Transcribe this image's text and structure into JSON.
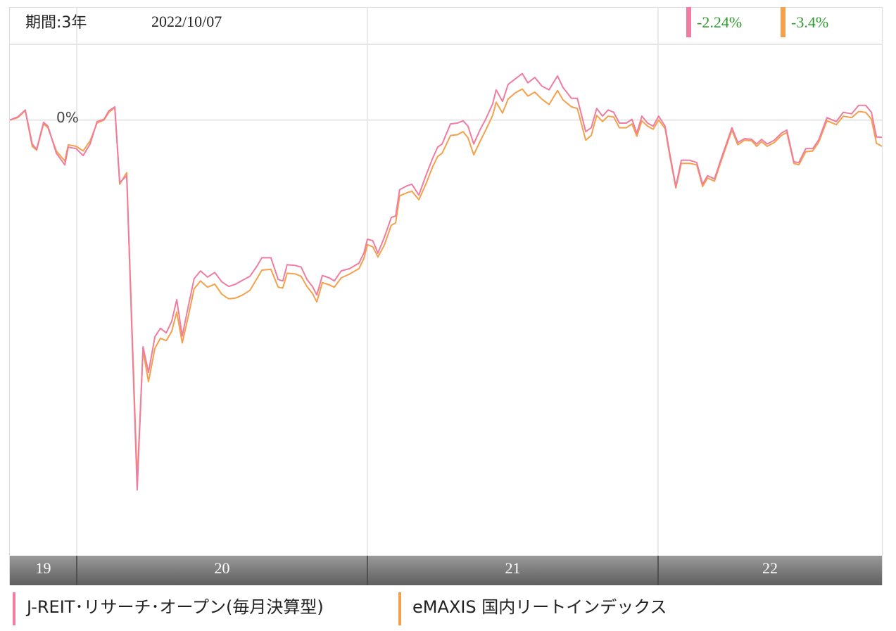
{
  "chart_data": {
    "type": "line",
    "period": "期間:3年",
    "date": "2022/10/07",
    "xlim": [
      2019.77,
      2022.77
    ],
    "xticks": [
      2020,
      2021,
      2022
    ],
    "years": [
      "19",
      "20",
      "21",
      "22"
    ],
    "ylim": [
      -56.3,
      14.6
    ],
    "yticks": [
      {
        "value": 0,
        "label": "0%"
      }
    ],
    "x": [
      2019.77,
      2019.797,
      2019.823,
      2019.847,
      2019.862,
      2019.886,
      2019.901,
      2019.93,
      2019.959,
      2019.971,
      2019.998,
      2020.022,
      2020.046,
      2020.07,
      2020.094,
      2020.111,
      2020.131,
      2020.148,
      2020.172,
      2020.208,
      2020.228,
      2020.247,
      2020.269,
      2020.288,
      2020.308,
      2020.327,
      2020.344,
      2020.363,
      2020.383,
      2020.404,
      2020.426,
      2020.45,
      2020.475,
      2020.499,
      2020.523,
      2020.547,
      2020.571,
      2020.596,
      2020.62,
      2020.637,
      2020.668,
      2020.693,
      2020.709,
      2020.724,
      2020.753,
      2020.772,
      2020.792,
      2020.811,
      2020.826,
      2020.845,
      2020.869,
      2020.886,
      2020.91,
      2020.939,
      2020.971,
      2020.988,
      2021.0,
      2021.019,
      2021.036,
      2021.058,
      2021.082,
      2021.097,
      2021.111,
      2021.136,
      2021.153,
      2021.177,
      2021.201,
      2021.225,
      2021.242,
      2021.257,
      2021.286,
      2021.31,
      2021.329,
      2021.346,
      2021.366,
      2021.387,
      2021.407,
      2021.431,
      2021.443,
      2021.465,
      2021.484,
      2021.508,
      2021.533,
      2021.552,
      2021.576,
      2021.6,
      2021.625,
      2021.654,
      2021.673,
      2021.702,
      2021.722,
      2021.751,
      2021.77,
      2021.789,
      2021.809,
      2021.828,
      2021.847,
      2021.867,
      2021.891,
      2021.91,
      2021.927,
      2021.944,
      2021.964,
      2021.983,
      2022.002,
      2022.024,
      2022.041,
      2022.061,
      2022.08,
      2022.109,
      2022.133,
      2022.153,
      2022.17,
      2022.194,
      2022.218,
      2022.254,
      2022.274,
      2022.298,
      2022.322,
      2022.339,
      2022.356,
      2022.375,
      2022.4,
      2022.424,
      2022.443,
      2022.467,
      2022.484,
      2022.508,
      2022.532,
      2022.552,
      2022.581,
      2022.613,
      2022.637,
      2022.666,
      2022.69,
      2022.714,
      2022.734,
      2022.751,
      2022.77
    ],
    "series": [
      {
        "name": "J-REIT･リサーチ･オープン(毎月決算型)",
        "color": "#f07ca0",
        "end_label": "-2.24%",
        "values": [
          0,
          0.4,
          1.3,
          -3.1,
          -3.8,
          -0.3,
          -0.8,
          -4.3,
          -5.8,
          -3.5,
          -3.7,
          -4.6,
          -3.1,
          -0.2,
          0.1,
          1.2,
          1.7,
          -8.1,
          -7.2,
          -47.8,
          -29.3,
          -32.6,
          -28.0,
          -26.9,
          -27.5,
          -26.0,
          -23.2,
          -27.9,
          -24.2,
          -20.5,
          -19.5,
          -20.3,
          -19.7,
          -20.9,
          -21.5,
          -21.2,
          -20.7,
          -20.2,
          -18.9,
          -17.8,
          -17.8,
          -20.6,
          -20.8,
          -18.7,
          -18.8,
          -19.0,
          -20.6,
          -21.5,
          -22.6,
          -20.1,
          -20.4,
          -20.8,
          -19.5,
          -19.2,
          -18.5,
          -17.2,
          -15.4,
          -15.6,
          -17.2,
          -15.2,
          -12.6,
          -12.4,
          -9.0,
          -8.5,
          -8.3,
          -9.7,
          -7.2,
          -4.9,
          -3.5,
          -3.1,
          -0.5,
          -0.4,
          -0.1,
          -0.8,
          -3.1,
          -1.3,
          0.1,
          2.1,
          3.9,
          2.4,
          4.6,
          5.3,
          6.0,
          4.8,
          5.5,
          4.4,
          3.9,
          5.7,
          4.2,
          2.8,
          2.8,
          -1.5,
          -1.0,
          1.5,
          0.5,
          1.3,
          1.0,
          -0.4,
          -0.4,
          0.1,
          -1.7,
          0.5,
          -0.4,
          -0.8,
          0.5,
          -0.8,
          -4.5,
          -8.6,
          -5.2,
          -5.2,
          -5.5,
          -8.3,
          -7.2,
          -7.6,
          -4.9,
          -1.0,
          -2.9,
          -2.4,
          -2.5,
          -3.1,
          -2.5,
          -3.1,
          -2.6,
          -1.7,
          -1.3,
          -5.4,
          -5.5,
          -3.7,
          -3.7,
          -2.6,
          0.3,
          -0.2,
          1.0,
          0.8,
          1.9,
          1.9,
          1.0,
          -2.2,
          -2.24
        ]
      },
      {
        "name": "eMAXIS 国内リートインデックス",
        "color": "#f5a04a",
        "end_label": "-3.4%",
        "values": [
          0,
          0.3,
          1.2,
          -3.4,
          -3.9,
          -0.5,
          -1.0,
          -4.0,
          -5.3,
          -3.2,
          -3.4,
          -4.0,
          -2.7,
          -0.4,
          0.0,
          1.0,
          1.6,
          -8.3,
          -6.8,
          -46.5,
          -29.8,
          -33.8,
          -29.5,
          -28.2,
          -28.5,
          -27.3,
          -24.8,
          -28.8,
          -25.5,
          -21.8,
          -20.8,
          -21.6,
          -21.2,
          -22.5,
          -23.1,
          -23.0,
          -22.6,
          -22.0,
          -20.5,
          -19.4,
          -19.3,
          -21.6,
          -21.7,
          -19.8,
          -19.9,
          -20.2,
          -21.5,
          -22.4,
          -23.5,
          -21.0,
          -21.3,
          -21.6,
          -20.4,
          -19.9,
          -19.2,
          -17.9,
          -16.1,
          -16.4,
          -17.7,
          -16.2,
          -13.6,
          -13.3,
          -9.8,
          -9.4,
          -9.2,
          -10.3,
          -8.3,
          -6.0,
          -4.7,
          -4.3,
          -2.0,
          -1.9,
          -1.5,
          -2.3,
          -4.5,
          -2.8,
          -1.3,
          0.6,
          2.3,
          0.9,
          2.7,
          3.5,
          4.0,
          3.1,
          3.6,
          2.7,
          2.0,
          3.8,
          2.6,
          1.7,
          1.5,
          -2.6,
          -2.0,
          0.6,
          -0.2,
          0.5,
          0.4,
          -1.0,
          -1.0,
          -0.5,
          -2.1,
          -0.1,
          -0.8,
          -1.2,
          0.0,
          -1.1,
          -4.8,
          -8.8,
          -5.6,
          -5.6,
          -5.8,
          -8.6,
          -7.5,
          -7.9,
          -5.2,
          -1.3,
          -3.2,
          -2.6,
          -2.7,
          -3.4,
          -2.8,
          -3.4,
          -2.9,
          -2.0,
          -1.6,
          -5.6,
          -5.8,
          -4.1,
          -4.0,
          -2.9,
          -0.1,
          -0.6,
          0.5,
          0.3,
          1.1,
          1.0,
          0.1,
          -3.0,
          -3.4
        ]
      }
    ]
  }
}
